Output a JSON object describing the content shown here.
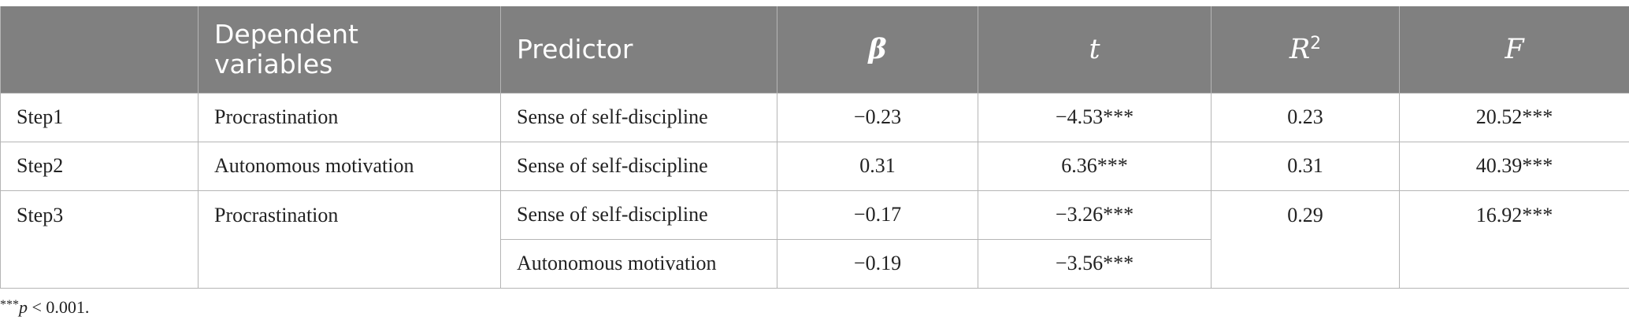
{
  "table": {
    "headers": {
      "blank": "",
      "dependent": "Dependent variables",
      "predictor": "Predictor",
      "beta": "β",
      "t": "t",
      "r2_base": "R",
      "r2_sup": "2",
      "f": "F"
    },
    "rows": [
      {
        "step": "Step1",
        "dependent": "Procrastination",
        "predictor": "Sense of self-discipline",
        "beta": "−0.23",
        "t": "−4.53***",
        "r2": "0.23",
        "f": "20.52***"
      },
      {
        "step": "Step2",
        "dependent": "Autonomous motivation",
        "predictor": "Sense of self-discipline",
        "beta": "0.31",
        "t": "6.36***",
        "r2": "0.31",
        "f": "40.39***"
      },
      {
        "step": "Step3",
        "dependent": "Procrastination",
        "predictor": "Sense of self-discipline",
        "beta": "−0.17",
        "t": "−3.26***",
        "r2": "0.29",
        "f": "16.92***"
      },
      {
        "predictor": "Autonomous motivation",
        "beta": "−0.19",
        "t": "−3.56***"
      }
    ]
  },
  "footnote": {
    "stars": "***",
    "p": "p",
    "rest": " < 0.001."
  }
}
